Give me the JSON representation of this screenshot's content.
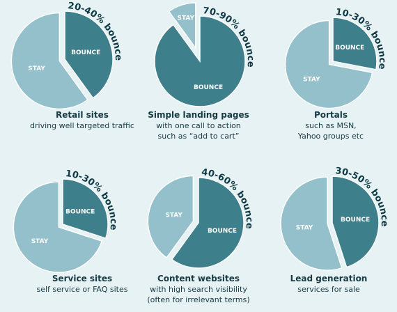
{
  "colors": {
    "stay": "#93c0ca",
    "bounce": "#3d7f8b",
    "background": "#e6f2f4",
    "text": "#173b44"
  },
  "chart_data": [
    {
      "type": "pie",
      "title": "Retail sites",
      "subtitle": [
        "driving well targeted traffic"
      ],
      "bounce_range": "20-40% bounce",
      "slices": [
        {
          "label": "STAY",
          "value": 60
        },
        {
          "label": "BOUNCE",
          "value": 40
        }
      ]
    },
    {
      "type": "pie",
      "title": "Simple landing pages",
      "subtitle": [
        "with one call to action",
        "such as “add to cart”"
      ],
      "bounce_range": "70-90% bounce",
      "slices": [
        {
          "label": "STAY",
          "value": 10
        },
        {
          "label": "BOUNCE",
          "value": 90
        }
      ]
    },
    {
      "type": "pie",
      "title": "Portals",
      "subtitle": [
        "such as MSN,",
        "Yahoo groups etc"
      ],
      "bounce_range": "10-30% bounce",
      "slices": [
        {
          "label": "STAY",
          "value": 72
        },
        {
          "label": "BOUNCE",
          "value": 28
        }
      ]
    },
    {
      "type": "pie",
      "title": "Service sites",
      "subtitle": [
        "self service or FAQ sites"
      ],
      "bounce_range": "10-30% bounce",
      "slices": [
        {
          "label": "STAY",
          "value": 70
        },
        {
          "label": "BOUNCE",
          "value": 30
        }
      ]
    },
    {
      "type": "pie",
      "title": "Content websites",
      "subtitle": [
        "with high search visibility",
        "(often for irrelevant terms)"
      ],
      "bounce_range": "40-60% bounce",
      "slices": [
        {
          "label": "STAY",
          "value": 40
        },
        {
          "label": "BOUNCE",
          "value": 60
        }
      ]
    },
    {
      "type": "pie",
      "title": "Lead generation",
      "subtitle": [
        "services for sale"
      ],
      "bounce_range": "30-50% bounce",
      "slices": [
        {
          "label": "STAY",
          "value": 55
        },
        {
          "label": "BOUNCE",
          "value": 45
        }
      ]
    }
  ]
}
